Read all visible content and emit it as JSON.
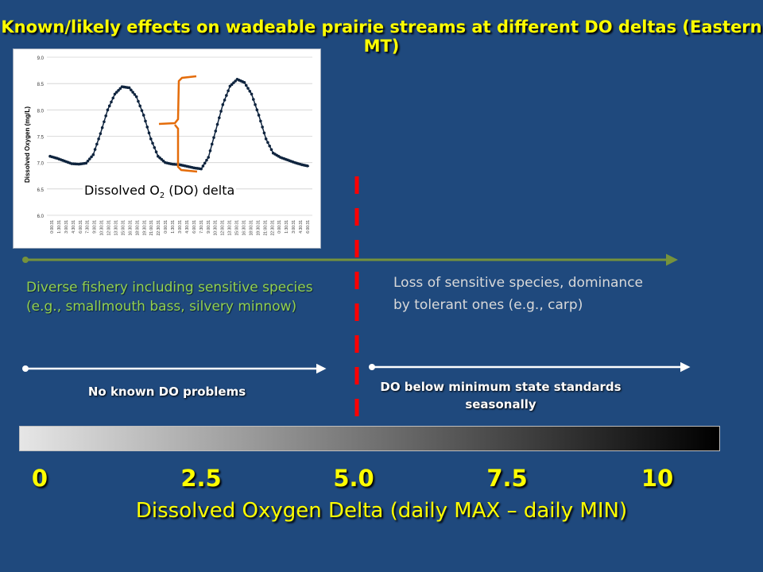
{
  "slide": {
    "title": "Known/likely effects on wadeable prairie streams at different DO deltas (Eastern MT)",
    "x_axis_label": "Dissolved Oxygen Delta (daily MAX – daily MIN)",
    "tick_labels": [
      "0",
      "2.5",
      "5.0",
      "7.5",
      "10"
    ]
  },
  "inset_chart": {
    "ylabel": "Dissolved Oxygen (mg/L)",
    "y_ticks": [
      "9.0",
      "8.5",
      "8.0",
      "7.5",
      "7.0",
      "6.5",
      "6.0"
    ],
    "ylim": [
      6.0,
      9.0
    ],
    "x_ticks": [
      "0:00:31",
      "1:30:31",
      "3:00:31",
      "4:30:31",
      "6:00:31",
      "7:30:31",
      "9:00:31",
      "10:30:31",
      "12:00:31",
      "13:30:31",
      "15:00:31",
      "16:30:31",
      "18:00:31",
      "19:30:31",
      "21:00:31",
      "22:30:31",
      "0:00:31",
      "1:30:31",
      "3:00:31",
      "4:30:31",
      "6:00:31",
      "7:30:31",
      "9:00:31",
      "10:30:31",
      "12:00:31",
      "13:30:31",
      "15:00:31",
      "16:30:31",
      "18:00:31",
      "19:30:31",
      "21:00:31",
      "22:30:31",
      "0:00:31",
      "1:30:31",
      "3:00:31",
      "4:30:31",
      "6:00:31"
    ],
    "annotation_prefix": "Dissolved O",
    "annotation_sub": "2",
    "annotation_suffix": " (DO) delta"
  },
  "chart_data": {
    "type": "line",
    "ylabel": "Dissolved Oxygen (mg/L)",
    "ylim": [
      6.0,
      9.0
    ],
    "series": [
      {
        "values": [
          7.12,
          7.08,
          7.03,
          6.98,
          6.97,
          6.99,
          7.15,
          7.55,
          8.0,
          8.3,
          8.44,
          8.42,
          8.25,
          7.9,
          7.45,
          7.12,
          7.0,
          6.97,
          6.96,
          6.93,
          6.9,
          6.88,
          7.1,
          7.6,
          8.1,
          8.45,
          8.58,
          8.52,
          8.3,
          7.9,
          7.45,
          7.18,
          7.1,
          7.05,
          7.0,
          6.96,
          6.93
        ]
      }
    ]
  },
  "upper_arrow": {
    "left_text_line1": "Diverse fishery including sensitive species",
    "left_text_line2": "(e.g., smallmouth bass, silvery minnow)",
    "right_text_line1": "Loss of sensitive species, dominance",
    "right_text_line2": "by tolerant ones (e.g., carp)"
  },
  "lower_arrows": {
    "left_label": "No known DO problems",
    "right_label_line1": "DO below minimum state standards",
    "right_label_line2": "seasonally"
  },
  "colors": {
    "background": "#1f497d",
    "title": "#ffff00",
    "threshold_line": "#ff0000",
    "upper_arrow": "#76923c",
    "bracket": "#e46c0a",
    "series": "#0f243e"
  }
}
